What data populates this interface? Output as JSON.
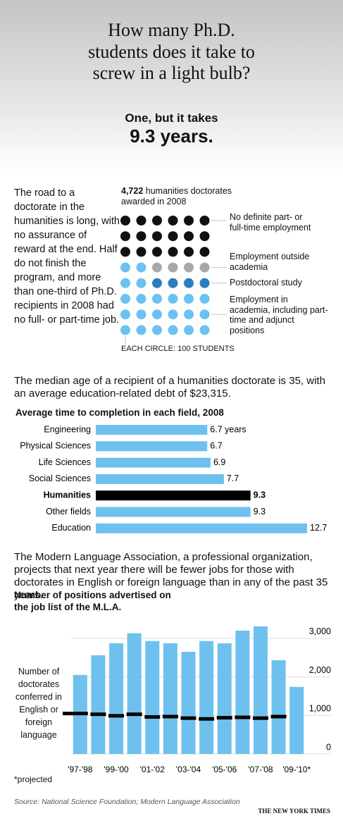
{
  "header": {
    "title_lines": [
      "How many Ph.D.",
      "students does it take to",
      "screw in a light bulb?"
    ],
    "subtitle": "One, but it takes",
    "answer": "9.3 years."
  },
  "intro": "The road to a doctorate in the humanities is long, with no assurance of reward at the end. Half do not finish the program, and more than one-third of Ph.D. recipients in 2008 had no full- or part-time job.",
  "chart_data": [
    {
      "type": "waffle",
      "title_number": "4,722",
      "title": "humanities doctorates awarded in 2008",
      "columns": 6,
      "note": "EACH CIRCLE: 100 STUDENTS",
      "series": [
        {
          "name": "No definite part- or full-time employment",
          "color": "#111111",
          "values": [
            18
          ]
        },
        {
          "name": "Employment outside academia",
          "color": "#a8a8aa",
          "values": [
            4
          ]
        },
        {
          "name": "Postdoctoral study",
          "color": "#2e7dbb",
          "values": [
            4
          ]
        },
        {
          "name": "Employment in academia, including part-time and adjunct positions",
          "color": "#6ec1ee",
          "values": [
            22
          ]
        }
      ]
    },
    {
      "type": "hbar",
      "title": "Average time to completion in each field, 2008",
      "categories": [
        "Engineering",
        "Physical Sciences",
        "Life Sciences",
        "Social Sciences",
        "Humanities",
        "Other fields",
        "Education"
      ],
      "values": [
        6.7,
        6.7,
        6.9,
        7.7,
        9.3,
        9.3,
        12.7
      ],
      "value_labels": [
        "6.7 years",
        "6.7",
        "6.9",
        "7.7",
        "9.3",
        "9.3",
        "12.7"
      ],
      "colors": [
        "#6ec1ee",
        "#6ec1ee",
        "#6ec1ee",
        "#6ec1ee",
        "#000000",
        "#6ec1ee",
        "#6ec1ee"
      ],
      "highlight": "Humanities",
      "xlim": [
        0,
        12.7
      ]
    },
    {
      "type": "column",
      "title_lines": [
        "Number of positions advertised on",
        "the job list of the M.L.A."
      ],
      "categories": [
        "'97-'98",
        null,
        "'99-'00",
        null,
        "'01-'02",
        null,
        "'03-'04",
        null,
        "'05-'06",
        null,
        "'07-'08",
        null,
        "'09-'10*"
      ],
      "series": [
        {
          "color": "#6ec1ee",
          "values": [
            2050,
            2560,
            2870,
            3130,
            2930,
            2870,
            2650,
            2930,
            2870,
            3200,
            3310,
            2430,
            1740
          ]
        },
        {
          "name": "Number of doctorates conferred in English or foreign language",
          "color": "#000000",
          "values": [
            1050,
            1030,
            990,
            1030,
            960,
            970,
            930,
            910,
            940,
            950,
            930,
            970,
            null
          ]
        }
      ],
      "ylim": [
        0,
        3400
      ],
      "yticks": [
        0,
        {
          "value": 1000,
          "label": "1,000"
        },
        {
          "value": 2000,
          "label": "2,000"
        },
        {
          "value": 3000,
          "label": "3,000"
        }
      ],
      "footnote": "*projected"
    }
  ],
  "paragraphs": [
    "The median age of a recipient of a humanities doctorate is 35, with an average education-related debt of $23,315.",
    "The Modern Language Association, a professional organization, projects that next year there will be fewer jobs for those with doctorates in English or foreign language than in any of the past 35 years."
  ],
  "source": "Source: National Science Foundation; Modern Language Association",
  "credit": "THE NEW YORK TIMES"
}
